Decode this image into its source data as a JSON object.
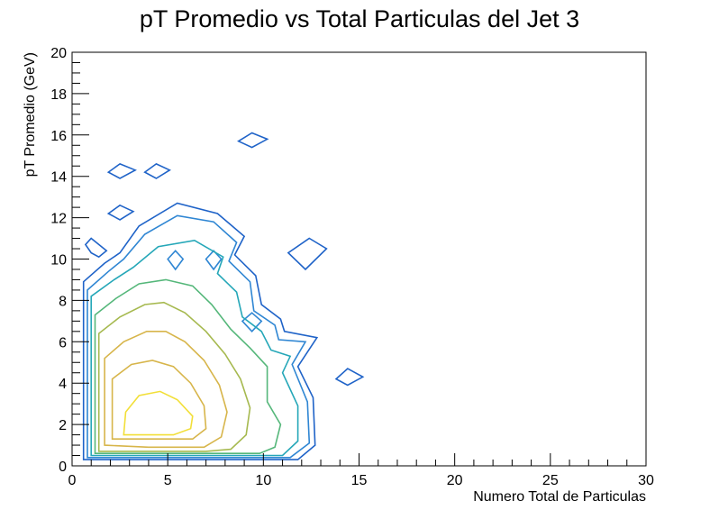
{
  "chart_data": {
    "type": "contour",
    "title": "pT Promedio vs Total Particulas del Jet 3",
    "xlabel": "Numero Total de Particulas",
    "ylabel": "pT Promedio (GeV)",
    "xlim": [
      0,
      30
    ],
    "ylim": [
      0,
      20
    ],
    "x_ticks": [
      0,
      5,
      10,
      15,
      20,
      25,
      30
    ],
    "y_ticks": [
      0,
      2,
      4,
      6,
      8,
      10,
      12,
      14,
      16,
      18,
      20
    ],
    "x_tick_labels": [
      "0",
      "5",
      "10",
      "15",
      "20",
      "25",
      "30"
    ],
    "y_tick_labels": [
      "0",
      "2",
      "4",
      "6",
      "8",
      "10",
      "12",
      "14",
      "16",
      "18",
      "20"
    ],
    "grid": false,
    "legend": false,
    "colors": {
      "level_1": "#1f63c8",
      "level_2": "#2f86d3",
      "level_3": "#25a7b8",
      "level_4": "#55b77a",
      "level_5": "#a6b94f",
      "level_6": "#d7b54a",
      "level_7": "#f2df38"
    },
    "series": [
      {
        "level": 1,
        "color": "#1f63c8",
        "contours": [
          [
            [
              0.6,
              0.3
            ],
            [
              0.6,
              8.9
            ],
            [
              1.7,
              9.8
            ],
            [
              2.5,
              10.3
            ],
            [
              3.5,
              11.6
            ],
            [
              5.5,
              12.7
            ],
            [
              7.6,
              12.2
            ],
            [
              9.0,
              11.1
            ],
            [
              8.5,
              10.2
            ],
            [
              9.6,
              9.2
            ],
            [
              9.9,
              7.8
            ],
            [
              10.9,
              7.1
            ],
            [
              11.1,
              6.5
            ],
            [
              12.8,
              6.2
            ],
            [
              11.8,
              4.8
            ],
            [
              12.6,
              3.3
            ],
            [
              12.7,
              1.0
            ],
            [
              11.8,
              0.3
            ]
          ],
          [
            [
              1.0,
              11.0
            ],
            [
              1.4,
              10.7
            ],
            [
              1.8,
              10.4
            ],
            [
              1.4,
              10.1
            ],
            [
              1.0,
              10.3
            ],
            [
              0.7,
              10.7
            ]
          ],
          [
            [
              2.5,
              14.6
            ],
            [
              3.3,
              14.3
            ],
            [
              2.5,
              13.9
            ],
            [
              1.9,
              14.2
            ]
          ],
          [
            [
              4.4,
              14.6
            ],
            [
              5.1,
              14.3
            ],
            [
              4.4,
              13.9
            ],
            [
              3.8,
              14.2
            ]
          ],
          [
            [
              9.4,
              16.1
            ],
            [
              10.2,
              15.8
            ],
            [
              9.4,
              15.4
            ],
            [
              8.7,
              15.7
            ]
          ],
          [
            [
              2.5,
              12.6
            ],
            [
              3.2,
              12.3
            ],
            [
              2.5,
              11.9
            ],
            [
              1.9,
              12.2
            ]
          ],
          [
            [
              12.4,
              11.0
            ],
            [
              13.3,
              10.5
            ],
            [
              12.2,
              9.5
            ],
            [
              11.3,
              10.3
            ]
          ],
          [
            [
              14.4,
              4.7
            ],
            [
              15.2,
              4.3
            ],
            [
              14.4,
              3.9
            ],
            [
              13.8,
              4.2
            ]
          ]
        ]
      },
      {
        "level": 2,
        "color": "#2f86d3",
        "contours": [
          [
            [
              0.8,
              0.4
            ],
            [
              0.8,
              8.5
            ],
            [
              1.9,
              9.4
            ],
            [
              2.7,
              10.0
            ],
            [
              3.8,
              11.2
            ],
            [
              5.5,
              12.1
            ],
            [
              7.4,
              11.8
            ],
            [
              8.6,
              10.8
            ],
            [
              8.2,
              9.9
            ],
            [
              9.3,
              8.9
            ],
            [
              9.5,
              7.5
            ],
            [
              10.6,
              6.8
            ],
            [
              10.8,
              6.1
            ],
            [
              12.2,
              6.0
            ],
            [
              11.5,
              4.9
            ],
            [
              12.3,
              3.1
            ],
            [
              12.4,
              1.1
            ],
            [
              11.4,
              0.4
            ]
          ],
          [
            [
              9.4,
              7.4
            ],
            [
              9.9,
              7.0
            ],
            [
              9.4,
              6.5
            ],
            [
              8.9,
              7.0
            ]
          ],
          [
            [
              5.4,
              10.4
            ],
            [
              5.8,
              10.0
            ],
            [
              5.4,
              9.5
            ],
            [
              5.0,
              10.0
            ]
          ],
          [
            [
              7.4,
              10.4
            ],
            [
              7.8,
              10.0
            ],
            [
              7.4,
              9.5
            ],
            [
              7.0,
              10.0
            ]
          ]
        ]
      },
      {
        "level": 3,
        "color": "#25a7b8",
        "contours": [
          [
            [
              1.0,
              0.5
            ],
            [
              1.0,
              8.2
            ],
            [
              2.2,
              9.0
            ],
            [
              3.2,
              9.6
            ],
            [
              4.5,
              10.6
            ],
            [
              6.4,
              10.9
            ],
            [
              7.9,
              10.1
            ],
            [
              7.6,
              9.3
            ],
            [
              8.6,
              8.4
            ],
            [
              8.9,
              7.2
            ],
            [
              9.9,
              6.5
            ],
            [
              10.4,
              5.6
            ],
            [
              11.4,
              5.3
            ],
            [
              11.0,
              4.5
            ],
            [
              11.8,
              2.9
            ],
            [
              11.8,
              1.2
            ],
            [
              11.0,
              0.5
            ]
          ]
        ]
      },
      {
        "level": 4,
        "color": "#55b77a",
        "contours": [
          [
            [
              1.2,
              0.6
            ],
            [
              1.2,
              7.3
            ],
            [
              2.3,
              8.1
            ],
            [
              3.5,
              8.8
            ],
            [
              4.9,
              9.0
            ],
            [
              6.3,
              8.7
            ],
            [
              7.3,
              7.8
            ],
            [
              8.3,
              6.6
            ],
            [
              9.3,
              5.7
            ],
            [
              10.2,
              4.8
            ],
            [
              10.2,
              3.1
            ],
            [
              10.9,
              2.0
            ],
            [
              10.6,
              0.9
            ],
            [
              9.8,
              0.6
            ]
          ]
        ]
      },
      {
        "level": 5,
        "color": "#a6b94f",
        "contours": [
          [
            [
              1.4,
              0.7
            ],
            [
              1.4,
              6.4
            ],
            [
              2.5,
              7.2
            ],
            [
              3.8,
              7.8
            ],
            [
              4.8,
              7.9
            ],
            [
              5.9,
              7.4
            ],
            [
              7.0,
              6.5
            ],
            [
              8.0,
              5.4
            ],
            [
              8.8,
              4.2
            ],
            [
              9.3,
              2.8
            ],
            [
              9.1,
              1.5
            ],
            [
              8.3,
              0.8
            ],
            [
              7.0,
              0.7
            ]
          ]
        ]
      },
      {
        "level": 6,
        "color": "#d7b54a",
        "contours": [
          [
            [
              1.7,
              1.0
            ],
            [
              1.7,
              5.2
            ],
            [
              2.7,
              6.0
            ],
            [
              3.9,
              6.5
            ],
            [
              4.9,
              6.5
            ],
            [
              5.9,
              6.0
            ],
            [
              6.9,
              5.1
            ],
            [
              7.7,
              3.9
            ],
            [
              8.1,
              2.6
            ],
            [
              7.8,
              1.4
            ],
            [
              6.9,
              0.9
            ],
            [
              4.0,
              0.9
            ]
          ],
          [
            [
              2.1,
              1.3
            ],
            [
              2.1,
              4.2
            ],
            [
              3.1,
              4.9
            ],
            [
              4.2,
              5.1
            ],
            [
              5.3,
              4.8
            ],
            [
              6.2,
              4.0
            ],
            [
              6.9,
              2.9
            ],
            [
              7.0,
              1.8
            ],
            [
              6.3,
              1.3
            ]
          ]
        ]
      },
      {
        "level": 7,
        "color": "#f2df38",
        "contours": [
          [
            [
              2.7,
              1.5
            ],
            [
              2.8,
              2.6
            ],
            [
              3.5,
              3.4
            ],
            [
              4.6,
              3.6
            ],
            [
              5.5,
              3.2
            ],
            [
              6.3,
              2.4
            ],
            [
              6.2,
              1.8
            ],
            [
              5.3,
              1.5
            ]
          ]
        ]
      }
    ]
  }
}
